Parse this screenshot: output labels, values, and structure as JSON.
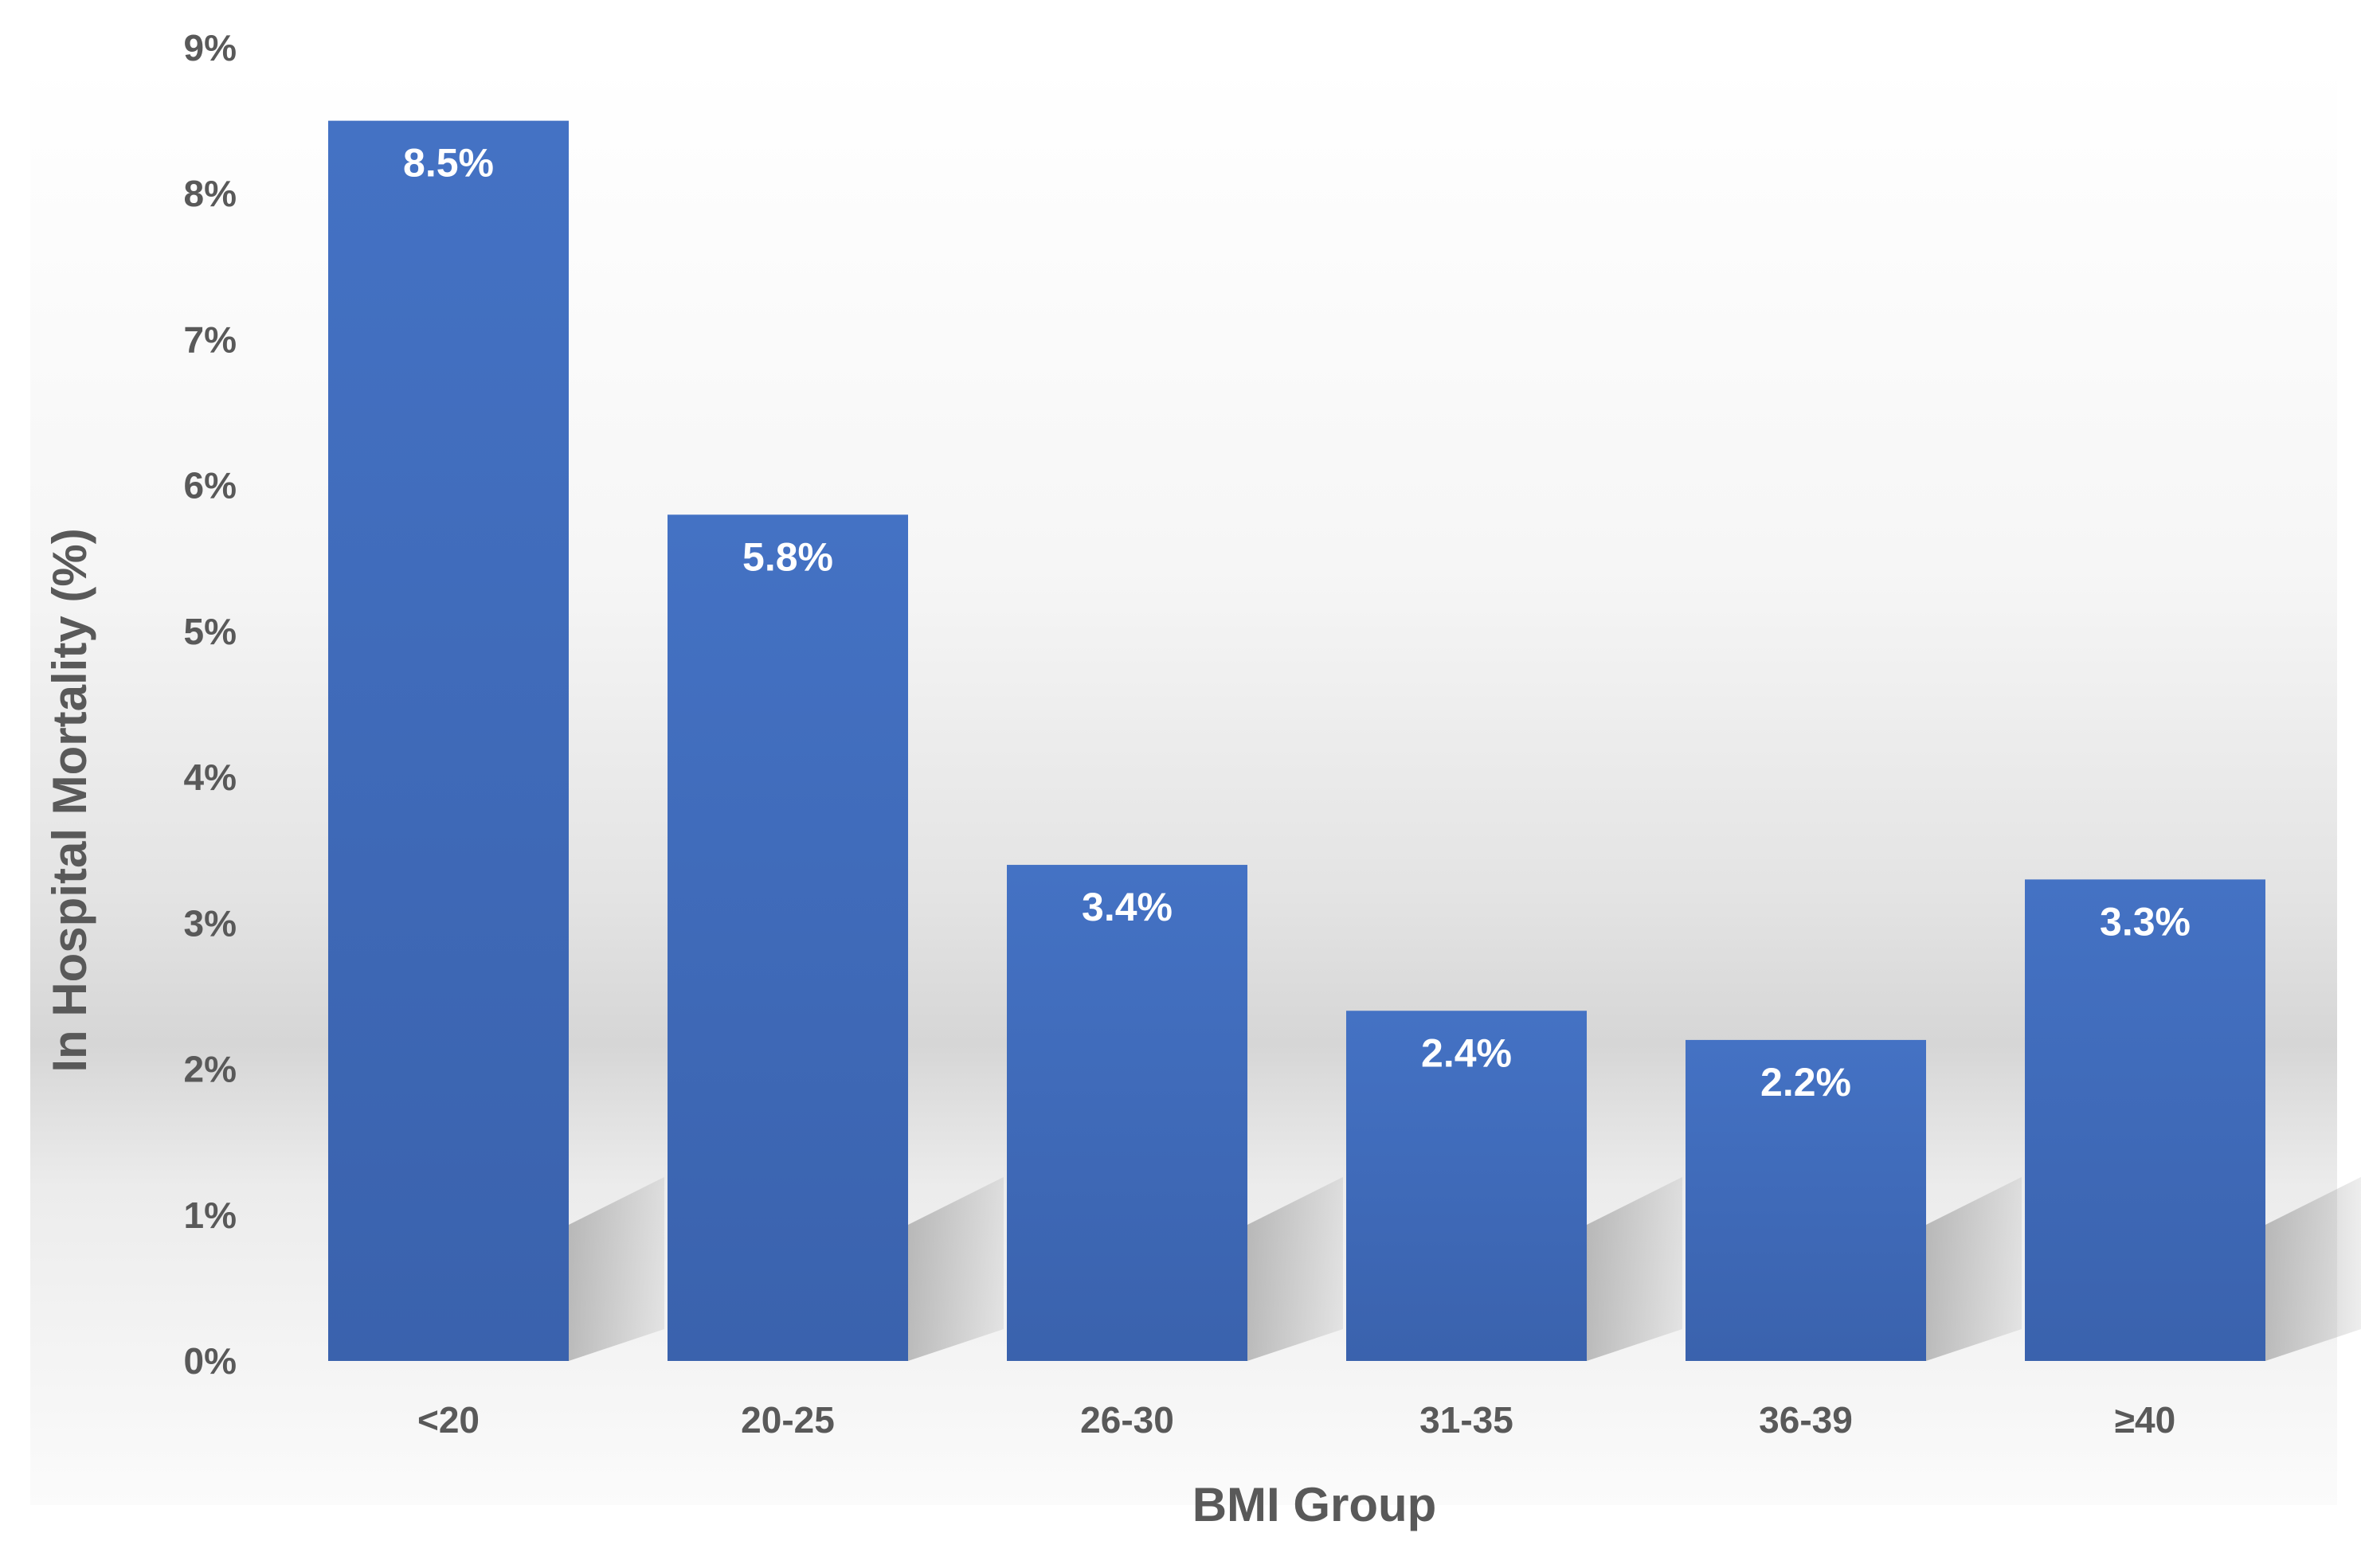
{
  "chart_data": {
    "type": "bar",
    "title": "",
    "xlabel": "BMI Group",
    "ylabel": "In Hospital Mortality (%)",
    "categories": [
      "<20",
      "20-25",
      "26-30",
      "31-35",
      "36-39",
      "≥40"
    ],
    "values": [
      8.5,
      5.8,
      3.4,
      2.4,
      2.2,
      3.3
    ],
    "data_labels": [
      "8.5%",
      "5.8%",
      "3.4%",
      "2.4%",
      "2.2%",
      "3.3%"
    ],
    "ylim": [
      0,
      9
    ],
    "yticks": [
      0,
      1,
      2,
      3,
      4,
      5,
      6,
      7,
      8,
      9
    ],
    "ytick_labels": [
      "0%",
      "1%",
      "2%",
      "3%",
      "4%",
      "5%",
      "6%",
      "7%",
      "8%",
      "9%"
    ],
    "grid": false,
    "legend": "none",
    "colors": {
      "bar": "#4472C4",
      "bar_dark": "#3A62AD",
      "text": "#595959",
      "data_label": "#FFFFFF",
      "background_shade": "#D9D9D9"
    }
  }
}
